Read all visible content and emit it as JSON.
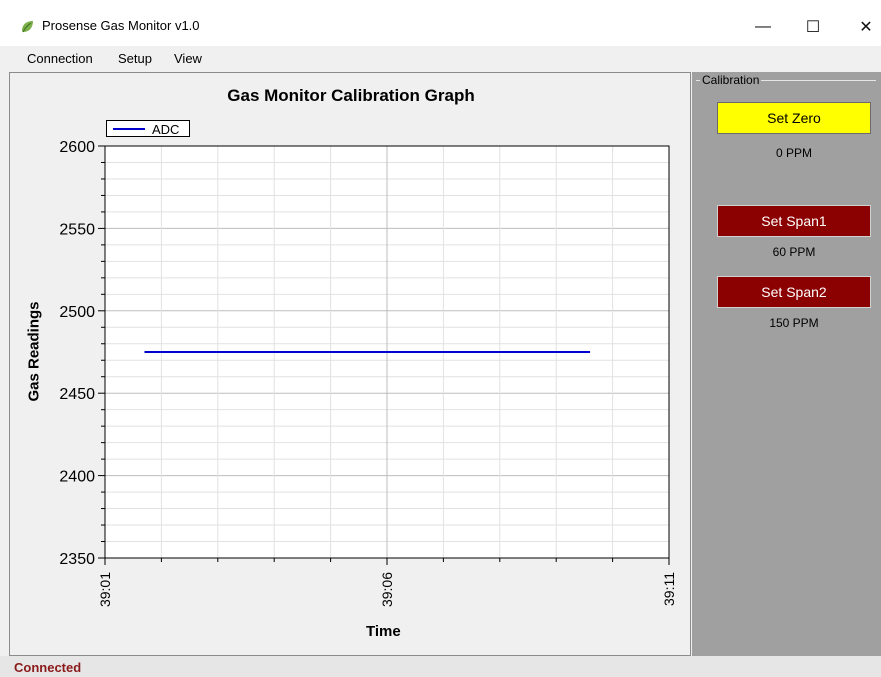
{
  "window": {
    "title": "Prosense Gas Monitor v1.0",
    "minimize_glyph": "—",
    "maximize_glyph": "☐",
    "close_glyph": "✕"
  },
  "menu": [
    "Connection",
    "Setup",
    "View"
  ],
  "calibration": {
    "group_label": "Calibration",
    "set_zero_label": "Set Zero",
    "zero_ppm": "0 PPM",
    "set_span1_label": "Set Span1",
    "span1_ppm": "60 PPM",
    "set_span2_label": "Set Span2",
    "span2_ppm": "150 PPM",
    "colors": {
      "zero": "#ffff00",
      "span": "#8b0000",
      "panel": "#a0a0a0"
    }
  },
  "status": {
    "text": "Connected",
    "color": "#8b1a1a"
  },
  "chart_data": {
    "type": "line",
    "title": "Gas Monitor Calibration Graph",
    "xlabel": "Time",
    "ylabel": "Gas Readings",
    "x_ticks": [
      "39:01",
      "39:06",
      "39:11"
    ],
    "y_ticks": [
      2350,
      2400,
      2450,
      2500,
      2550,
      2600
    ],
    "ylim": [
      2350,
      2600
    ],
    "xlim": [
      "39:01",
      "39:11"
    ],
    "legend_position": "top-left",
    "grid": true,
    "series": [
      {
        "name": "ADC",
        "color": "#0000cc",
        "x": [
          "39:01.7",
          "39:09.6"
        ],
        "y": [
          2475,
          2475
        ]
      }
    ]
  }
}
